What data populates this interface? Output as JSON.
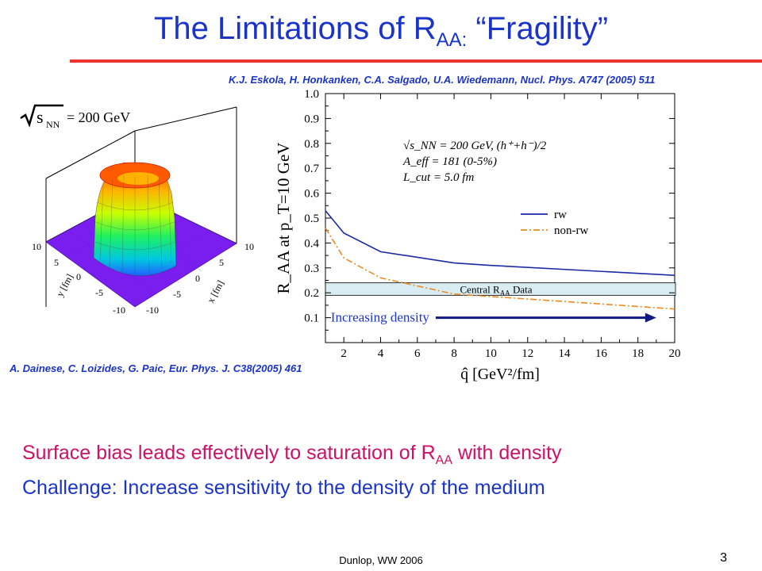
{
  "slide": {
    "title_main": "The Limitations of R",
    "title_sub": "AA:",
    "title_tail": " “Fragility”",
    "ref_top": "K.J. Eskola, H. Honkanken, C.A. Salgado, U.A. Wiedemann, Nucl. Phys. A747 (2005) 511",
    "ref_bottom": "A. Dainese, C. Loizides, G. Paic, Eur. Phys. J. C38(2005) 461",
    "bullet1_main": "Surface bias leads effectively to saturation of R",
    "bullet1_sub": "AA",
    "bullet1_tail": " with density",
    "bullet2": "Challenge: Increase sensitivity to the density of the medium",
    "footer": "Dunlop, WW 2006",
    "page_number": "3",
    "colors": {
      "title": "#1a33c8",
      "rule": "#ee3333",
      "bullet1": "#cc1166",
      "bullet2": "#1a33c8"
    }
  },
  "surface_plot": {
    "energy_label": "= 200 GeV",
    "sqrt_label": "s",
    "sqrt_sub": "NN",
    "y_axis_label": "y [fm]",
    "x_axis_label": "x [fm]",
    "y_ticks": [
      "10",
      "5",
      "0",
      "-5",
      "-10"
    ],
    "x_ticks": [
      "10",
      "5",
      "0",
      "-5",
      "-10"
    ]
  },
  "chart_data": {
    "type": "line",
    "xlabel": "q̂ [GeV²/fm]",
    "ylabel": "R_AA at p_T=10 GeV",
    "xlim": [
      1,
      20
    ],
    "ylim": [
      0.0,
      1.0
    ],
    "x_ticks": [
      "2",
      "4",
      "6",
      "8",
      "10",
      "12",
      "14",
      "16",
      "18",
      "20"
    ],
    "y_ticks": [
      "0.1",
      "0.2",
      "0.3",
      "0.4",
      "0.5",
      "0.6",
      "0.7",
      "0.8",
      "0.9",
      "1.0"
    ],
    "legend": {
      "placement": "center-right",
      "lines": [
        "√s_NN = 200 GeV, (h⁺+h⁻)/2",
        "A_eff = 181 (0-5%)",
        "L_cut = 5.0 fm"
      ]
    },
    "series": [
      {
        "name": "rw",
        "color": "#1a2aa8",
        "style": "solid",
        "x": [
          1,
          2,
          4,
          8,
          10,
          20
        ],
        "y": [
          0.53,
          0.44,
          0.365,
          0.32,
          0.31,
          0.27
        ]
      },
      {
        "name": "non-rw",
        "color": "#f08a20",
        "style": "dashdot",
        "x": [
          1,
          2,
          4,
          8,
          12,
          20
        ],
        "y": [
          0.46,
          0.34,
          0.26,
          0.195,
          0.175,
          0.135
        ]
      }
    ],
    "band": {
      "label_main": "Central R",
      "label_sub": "AA",
      "label_tail": " Data",
      "ymin": 0.19,
      "ymax": 0.24,
      "color": "#d9ecf2"
    },
    "annotation": {
      "label": "Increasing density",
      "x_from": 7,
      "x_to": 19,
      "y": 0.1,
      "color": "#111a80"
    }
  }
}
